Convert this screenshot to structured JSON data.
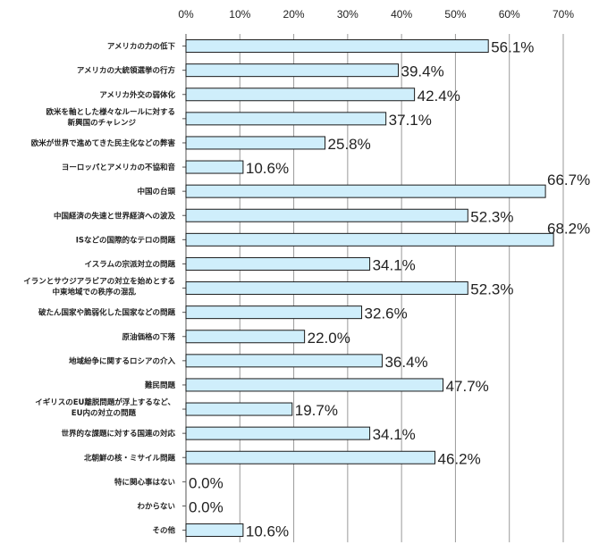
{
  "chart_data": {
    "type": "bar",
    "orientation": "horizontal",
    "title": "",
    "xlabel": "",
    "ylabel": "",
    "xlim": [
      0,
      70
    ],
    "ticks": [
      "0%",
      "10%",
      "20%",
      "30%",
      "40%",
      "50%",
      "60%",
      "70%"
    ],
    "grid": true,
    "bar_color": "#cfeefb",
    "bar_edge_color": "#1a1a1a",
    "categories": [
      [
        "アメリカの力の低下"
      ],
      [
        "アメリカの大統領選挙の行方"
      ],
      [
        "アメリカ外交の弱体化"
      ],
      [
        "欧米を軸とした様々なルールに対する",
        "新興国のチャレンジ"
      ],
      [
        "欧米が世界で進めてきた民主化などの弊害"
      ],
      [
        "ヨーロッパとアメリカの不協和音"
      ],
      [
        "中国の台頭"
      ],
      [
        "中国経済の失速と世界経済への波及"
      ],
      [
        "ISなどの国際的なテロの問題"
      ],
      [
        "イスラムの宗派対立の問題"
      ],
      [
        "イランとサウジアラビアの対立を始めとする",
        "中東地域での秩序の混乱"
      ],
      [
        "破たん国家や脆弱化した国家などの問題"
      ],
      [
        "原油価格の下落"
      ],
      [
        "地域紛争に関するロシアの介入"
      ],
      [
        "難民問題"
      ],
      [
        "イギリスのEU離脱問題が浮上するなど、",
        "EU内の対立の問題"
      ],
      [
        "世界的な課題に対する国連の対応"
      ],
      [
        "北朝鮮の核・ミサイル問題"
      ],
      [
        "特に関心事はない"
      ],
      [
        "わからない"
      ],
      [
        "その他"
      ]
    ],
    "values": [
      56.1,
      39.4,
      42.4,
      37.1,
      25.8,
      10.6,
      66.7,
      52.3,
      68.2,
      34.1,
      52.3,
      32.6,
      22.0,
      36.4,
      47.7,
      19.7,
      34.1,
      46.2,
      0.0,
      0.0,
      10.6
    ],
    "value_labels": [
      "56.1%",
      "39.4%",
      "42.4%",
      "37.1%",
      "25.8%",
      "10.6%",
      "66.7%",
      "52.3%",
      "68.2%",
      "34.1%",
      "52.3%",
      "32.6%",
      "22.0%",
      "36.4%",
      "47.7%",
      "19.7%",
      "34.1%",
      "46.2%",
      "0.0%",
      "0.0%",
      "10.6%"
    ]
  }
}
